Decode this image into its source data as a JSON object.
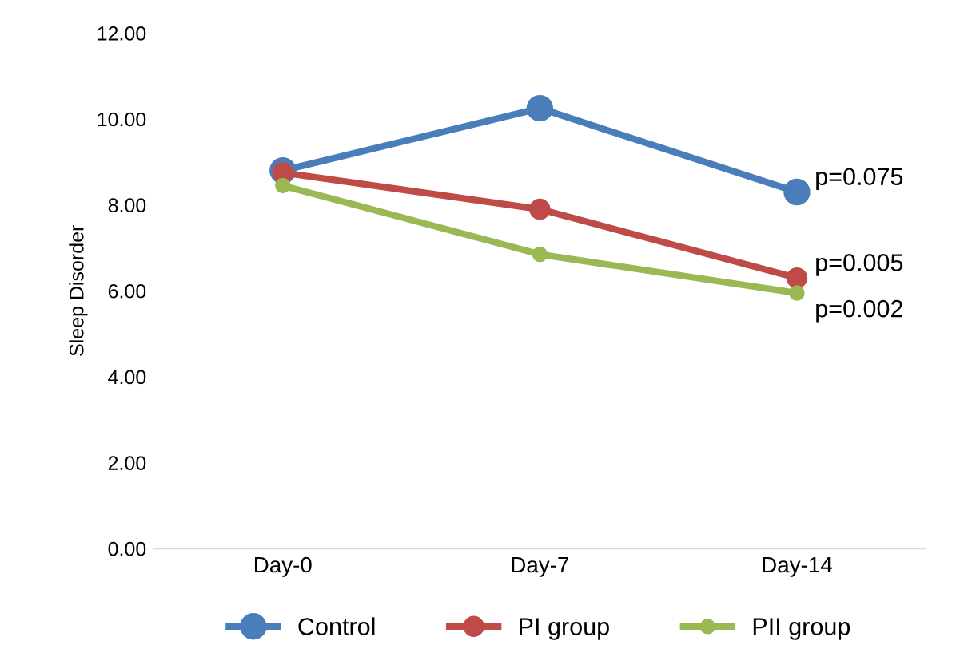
{
  "chart_data": {
    "type": "line",
    "ylabel": "Sleep Disorder",
    "categories": [
      "Day-0",
      "Day-7",
      "Day-14"
    ],
    "series": [
      {
        "name": "Control",
        "color": "#4a7ebb",
        "values": [
          8.8,
          10.25,
          8.3
        ]
      },
      {
        "name": "PI group",
        "color": "#be4b48",
        "values": [
          8.75,
          7.9,
          6.3
        ]
      },
      {
        "name": "PII group",
        "color": "#98b954",
        "values": [
          8.45,
          6.85,
          5.95
        ]
      }
    ],
    "ylim": [
      0,
      12
    ],
    "yticks": [
      {
        "value": 0,
        "label": "0.00"
      },
      {
        "value": 2,
        "label": "2.00"
      },
      {
        "value": 4,
        "label": "4.00"
      },
      {
        "value": 6,
        "label": "6.00"
      },
      {
        "value": 8,
        "label": "8.00"
      },
      {
        "value": 10,
        "label": "10.00"
      },
      {
        "value": 12,
        "label": "12.00"
      }
    ],
    "annotations": [
      {
        "text": "p=0.075",
        "x": "Day-14",
        "y": 8.3
      },
      {
        "text": "p=0.005",
        "x": "Day-14",
        "y": 6.3
      },
      {
        "text": "p=0.002",
        "x": "Day-14",
        "y": 5.95
      }
    ],
    "marker": "circle",
    "line_style": "solid",
    "legend": "bottom",
    "grid": false
  }
}
